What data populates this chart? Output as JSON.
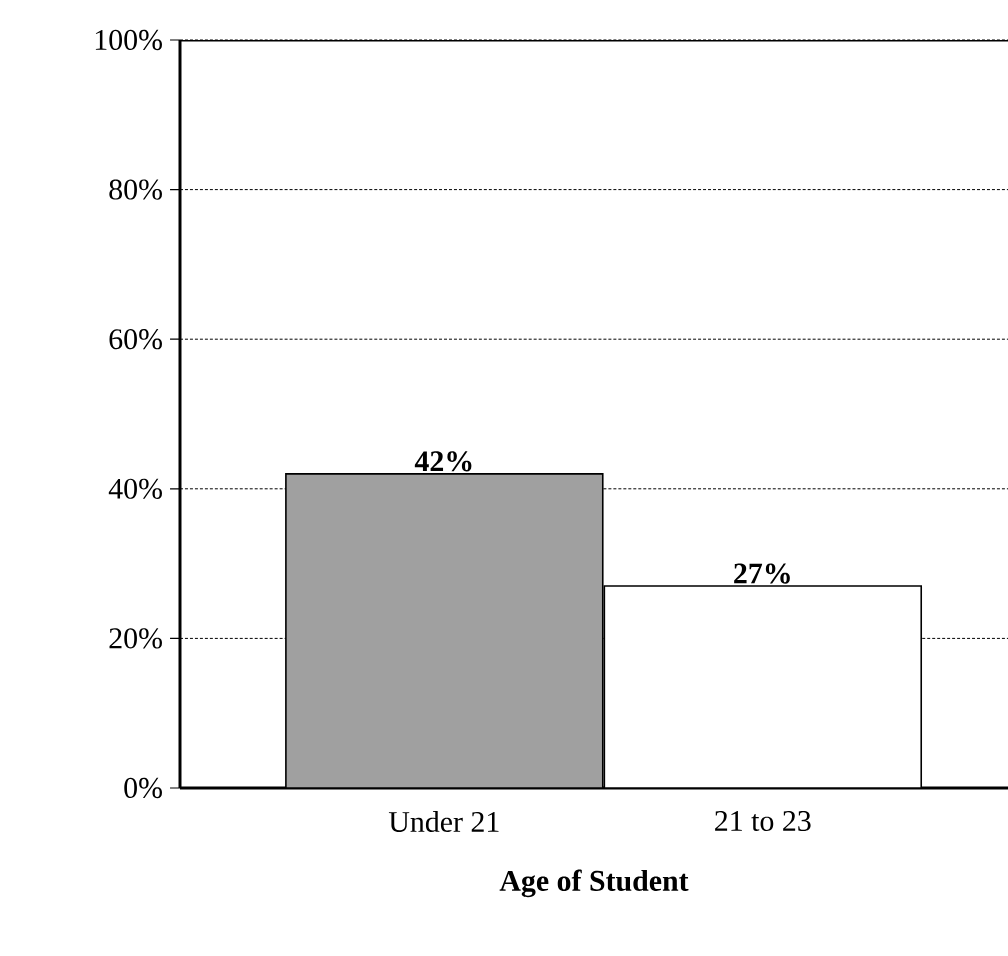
{
  "chart_data": {
    "type": "bar",
    "xlabel": "Age of Student",
    "categories": [
      "Under 21",
      "21 to 23"
    ],
    "values": [
      42,
      27
    ],
    "colors": [
      "#a0a0a0",
      "#ffffff"
    ],
    "value_labels": [
      "42%",
      "27%"
    ],
    "ylim": [
      0,
      100
    ],
    "yticks": [
      {
        "value": 0,
        "label": "0%"
      },
      {
        "value": 20,
        "label": "20%"
      },
      {
        "value": 40,
        "label": "40%"
      },
      {
        "value": 60,
        "label": "60%"
      },
      {
        "value": 80,
        "label": "80%"
      },
      {
        "value": 100,
        "label": "100%"
      }
    ],
    "grid": "y"
  }
}
